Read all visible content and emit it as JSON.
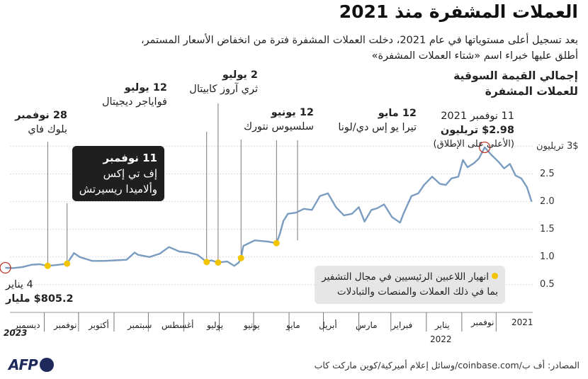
{
  "header": {
    "title": "العملات المشفرة منذ 2021",
    "subtitle_line1": "بعد تسجيل أعلى مستوياتها في عام 2021، دخلت العملات المشفرة فترة من انخفاض الأسعار المستمر،",
    "subtitle_line2": "أطلق عليها خبراء اسم «شتاء العملات المشفرة»",
    "legend_line1": "إجمالي القيمة السوقية",
    "legend_line2": "للعملات المشفرة"
  },
  "annotations": {
    "peak_date": "11 نوفمبر 2021",
    "peak_value": "$2.98 تريليون",
    "peak_note": "(الأعلى على الإطلاق)",
    "start_date": "4 يناير",
    "start_value": "$805.2 مليار",
    "may_date": "12 مايو",
    "may_label": "تيرا يو إس دي/لونا",
    "june12_date": "12 يونيو",
    "june12_label": "سلسيوس نتورك",
    "july2_date": "2 يوليو",
    "july2_label": "ثري آروز كابيتال",
    "july12_date": "12 يوليو",
    "july12_label": "فواياجر ديجيتال",
    "nov28_date": "28 نوفمبر",
    "nov28_label": "بلوك فاي",
    "ftx_date": "11 نوفمبر",
    "ftx_label1": "إف تي إكس",
    "ftx_label2": "وألاميدا ريسيرتش",
    "box_line1": "انهيار اللاعبين الرئيسيين في مجال التشفير",
    "box_line2": "بما في ذلك العملات والمنصات والتبادلات"
  },
  "footer": {
    "source": "المصادر: أف ب/coinbase.com/وسائل إعلام أميركية/كوين ماركت كاب",
    "logo": "AFP"
  },
  "colors": {
    "line": "#7a9cc0",
    "marker": "#f2c500",
    "peak_circle": "#c0392b",
    "dark_box": "#1f1f1f",
    "gray_box": "#e6e6e6"
  },
  "chart_data": {
    "type": "line",
    "title": "العملات المشفرة منذ 2021",
    "ylabel": "إجمالي القيمة السوقية للعملات المشفرة",
    "y_unit": "تريليون دولار",
    "ylim": [
      0,
      3.2
    ],
    "yticks": [
      0.5,
      1.0,
      1.5,
      2.0,
      2.5,
      3
    ],
    "ytick_labels": [
      "0.5",
      "1.0",
      "1.5",
      "2.0",
      "2.5",
      "3$ تريليون"
    ],
    "x_start": "2021-09-30",
    "x_end": "2022-12-31",
    "month_labels": [
      {
        "label": "2021",
        "month": "2021-10"
      },
      {
        "label": "نوفمبر",
        "month": "2021-11"
      },
      {
        "label": "ديسمبر",
        "month": "2021-12"
      },
      {
        "label": "يناير",
        "month": "2022-01"
      },
      {
        "label": "فبراير",
        "month": "2022-02"
      },
      {
        "label": "مارس",
        "month": "2022-03"
      },
      {
        "label": "أبريل",
        "month": "2022-04"
      },
      {
        "label": "مايو",
        "month": "2022-05"
      },
      {
        "label": "يونيو",
        "month": "2022-06"
      },
      {
        "label": "يوليو",
        "month": "2022-07"
      },
      {
        "label": "أغسطس",
        "month": "2022-08"
      },
      {
        "label": "سبتمبر",
        "month": "2022-09"
      },
      {
        "label": "أكتوبر",
        "month": "2022-10"
      },
      {
        "label": "نوفمبر",
        "month": "2022-11"
      },
      {
        "label": "ديسمبر",
        "month": "2022-12"
      }
    ],
    "year_labels": [
      {
        "label": "2021",
        "month": "2021-10"
      },
      {
        "label": "2022",
        "month": "2022-01"
      },
      {
        "label": "2023",
        "month": "2022-12"
      }
    ],
    "series": [
      {
        "values": [
          {
            "date": "2021-10-01",
            "y": 2.0
          },
          {
            "date": "2021-10-05",
            "y": 2.26
          },
          {
            "date": "2021-10-10",
            "y": 2.42
          },
          {
            "date": "2021-10-15",
            "y": 2.47
          },
          {
            "date": "2021-10-20",
            "y": 2.68
          },
          {
            "date": "2021-10-25",
            "y": 2.6
          },
          {
            "date": "2021-10-30",
            "y": 2.72
          },
          {
            "date": "2021-11-05",
            "y": 2.84
          },
          {
            "date": "2021-11-11",
            "y": 2.98
          },
          {
            "date": "2021-11-16",
            "y": 2.78
          },
          {
            "date": "2021-11-20",
            "y": 2.7
          },
          {
            "date": "2021-11-26",
            "y": 2.62
          },
          {
            "date": "2021-11-30",
            "y": 2.75
          },
          {
            "date": "2021-12-04",
            "y": 2.45
          },
          {
            "date": "2021-12-10",
            "y": 2.42
          },
          {
            "date": "2021-12-15",
            "y": 2.3
          },
          {
            "date": "2021-12-20",
            "y": 2.32
          },
          {
            "date": "2021-12-27",
            "y": 2.45
          },
          {
            "date": "2022-01-03",
            "y": 2.3
          },
          {
            "date": "2022-01-08",
            "y": 2.15
          },
          {
            "date": "2022-01-14",
            "y": 2.1
          },
          {
            "date": "2022-01-21",
            "y": 1.78
          },
          {
            "date": "2022-01-24",
            "y": 1.62
          },
          {
            "date": "2022-01-31",
            "y": 1.72
          },
          {
            "date": "2022-02-07",
            "y": 1.95
          },
          {
            "date": "2022-02-13",
            "y": 1.88
          },
          {
            "date": "2022-02-18",
            "y": 1.85
          },
          {
            "date": "2022-02-24",
            "y": 1.64
          },
          {
            "date": "2022-03-01",
            "y": 1.9
          },
          {
            "date": "2022-03-07",
            "y": 1.78
          },
          {
            "date": "2022-03-14",
            "y": 1.75
          },
          {
            "date": "2022-03-21",
            "y": 1.9
          },
          {
            "date": "2022-03-28",
            "y": 2.15
          },
          {
            "date": "2022-04-04",
            "y": 2.1
          },
          {
            "date": "2022-04-11",
            "y": 1.85
          },
          {
            "date": "2022-04-18",
            "y": 1.87
          },
          {
            "date": "2022-04-25",
            "y": 1.8
          },
          {
            "date": "2022-05-02",
            "y": 1.78
          },
          {
            "date": "2022-05-06",
            "y": 1.65
          },
          {
            "date": "2022-05-09",
            "y": 1.42
          },
          {
            "date": "2022-05-12",
            "y": 1.25
          },
          {
            "date": "2022-05-20",
            "y": 1.28
          },
          {
            "date": "2022-05-31",
            "y": 1.3
          },
          {
            "date": "2022-06-06",
            "y": 1.24
          },
          {
            "date": "2022-06-10",
            "y": 1.2
          },
          {
            "date": "2022-06-12",
            "y": 0.98
          },
          {
            "date": "2022-06-14",
            "y": 0.9
          },
          {
            "date": "2022-06-18",
            "y": 0.84
          },
          {
            "date": "2022-06-24",
            "y": 0.92
          },
          {
            "date": "2022-07-02",
            "y": 0.9
          },
          {
            "date": "2022-07-08",
            "y": 0.94
          },
          {
            "date": "2022-07-12",
            "y": 0.91
          },
          {
            "date": "2022-07-20",
            "y": 1.04
          },
          {
            "date": "2022-07-28",
            "y": 1.08
          },
          {
            "date": "2022-08-05",
            "y": 1.1
          },
          {
            "date": "2022-08-14",
            "y": 1.18
          },
          {
            "date": "2022-08-22",
            "y": 1.06
          },
          {
            "date": "2022-08-31",
            "y": 1.0
          },
          {
            "date": "2022-09-10",
            "y": 1.04
          },
          {
            "date": "2022-09-13",
            "y": 1.08
          },
          {
            "date": "2022-09-20",
            "y": 0.95
          },
          {
            "date": "2022-09-30",
            "y": 0.94
          },
          {
            "date": "2022-10-10",
            "y": 0.93
          },
          {
            "date": "2022-10-20",
            "y": 0.93
          },
          {
            "date": "2022-10-31",
            "y": 1.0
          },
          {
            "date": "2022-11-05",
            "y": 1.07
          },
          {
            "date": "2022-11-08",
            "y": 0.98
          },
          {
            "date": "2022-11-11",
            "y": 0.88
          },
          {
            "date": "2022-11-18",
            "y": 0.86
          },
          {
            "date": "2022-11-28",
            "y": 0.84
          },
          {
            "date": "2022-12-05",
            "y": 0.87
          },
          {
            "date": "2022-12-12",
            "y": 0.86
          },
          {
            "date": "2022-12-20",
            "y": 0.82
          },
          {
            "date": "2022-12-28",
            "y": 0.8
          },
          {
            "date": "2023-01-04",
            "y": 0.8052
          }
        ]
      }
    ],
    "events": [
      {
        "date": "2021-11-11",
        "label": "11 نوفمبر 2021",
        "value": 2.98,
        "kind": "peak"
      },
      {
        "date": "2022-05-12",
        "label": "12 مايو",
        "value": 1.25,
        "kind": "collapse"
      },
      {
        "date": "2022-06-12",
        "label": "12 يونيو",
        "value": 0.98,
        "kind": "collapse"
      },
      {
        "date": "2022-07-02",
        "label": "2 يوليو",
        "value": 0.9,
        "kind": "collapse"
      },
      {
        "date": "2022-07-12",
        "label": "12 يوليو",
        "value": 0.91,
        "kind": "collapse"
      },
      {
        "date": "2022-11-11",
        "label": "11 نوفمبر",
        "value": 0.88,
        "kind": "collapse"
      },
      {
        "date": "2022-11-28",
        "label": "28 نوفمبر",
        "value": 0.84,
        "kind": "collapse"
      },
      {
        "date": "2023-01-04",
        "label": "4 يناير",
        "value": 0.8052,
        "kind": "end"
      }
    ]
  }
}
